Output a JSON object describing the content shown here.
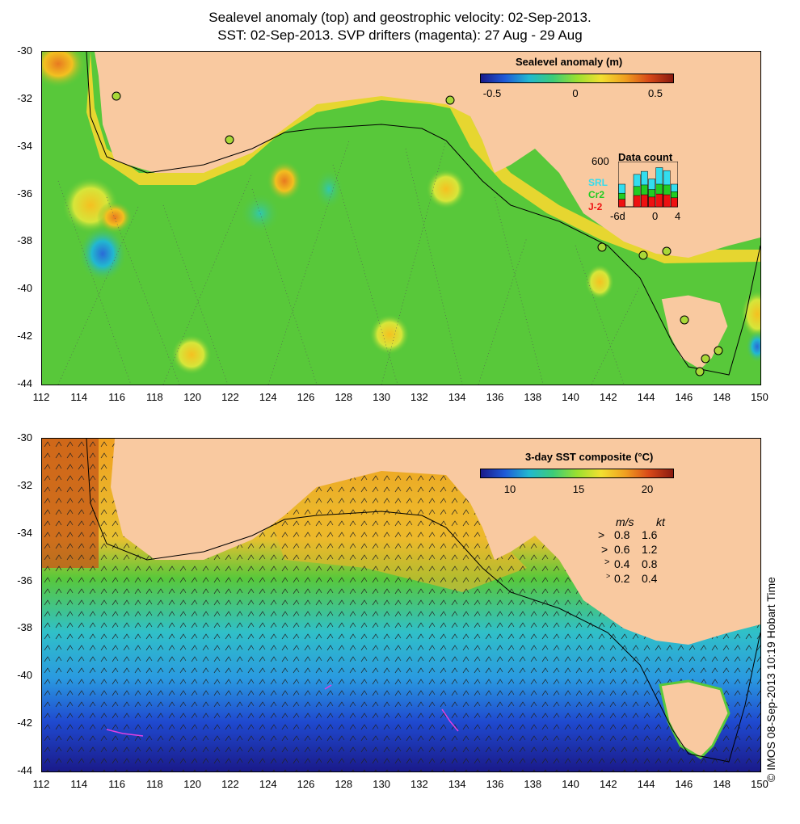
{
  "title_line1": "Sealevel anomaly (top) and geostrophic velocity: 02-Sep-2013.",
  "title_line2": "SST: 02-Sep-2013. SVP drifters (magenta): 27 Aug - 29 Aug",
  "y_ticks": [
    "-30",
    "-32",
    "-34",
    "-36",
    "-38",
    "-40",
    "-42",
    "-44"
  ],
  "x_ticks": [
    "112",
    "114",
    "116",
    "118",
    "120",
    "122",
    "124",
    "126",
    "128",
    "130",
    "132",
    "134",
    "136",
    "138",
    "140",
    "142",
    "144",
    "146",
    "148",
    "150"
  ],
  "top_panel": {
    "colorbar_title": "Sealevel anomaly (m)",
    "colorbar_ticks": [
      "-0.5",
      "0",
      "0.5"
    ],
    "colorbar_range": [
      -0.6,
      0.6
    ],
    "colors": {
      "land": "#f9c9a0",
      "ocean": "#58c83a"
    },
    "inset": {
      "title": "Data count",
      "y_max_label": "600",
      "x_ticks": [
        "-6d",
        "0",
        "4"
      ],
      "series": [
        {
          "name": "SRL",
          "color": "#33ddee",
          "counts": [
            300,
            0,
            430,
            470,
            370,
            520,
            480,
            300
          ]
        },
        {
          "name": "Cr2",
          "color": "#22cc22",
          "counts": [
            180,
            0,
            270,
            290,
            230,
            300,
            290,
            200
          ]
        },
        {
          "name": "J-2",
          "color": "#ee1111",
          "counts": [
            100,
            0,
            150,
            160,
            130,
            170,
            160,
            120
          ]
        }
      ]
    }
  },
  "bottom_panel": {
    "colorbar_title": "3-day SST composite (°C)",
    "colorbar_ticks": [
      "10",
      "15",
      "20"
    ],
    "colorbar_range": [
      8,
      22
    ],
    "velocity_key": {
      "header_ms": "m/s",
      "header_kt": "kt",
      "rows": [
        {
          "ms": "0.8",
          "kt": "1.6"
        },
        {
          "ms": "0.6",
          "kt": "1.2"
        },
        {
          "ms": "0.4",
          "kt": "0.8"
        },
        {
          "ms": "0.2",
          "kt": "0.4"
        }
      ]
    }
  },
  "copyright": "© IMOS 08-Sep-2013 10:19 Hobart Time"
}
